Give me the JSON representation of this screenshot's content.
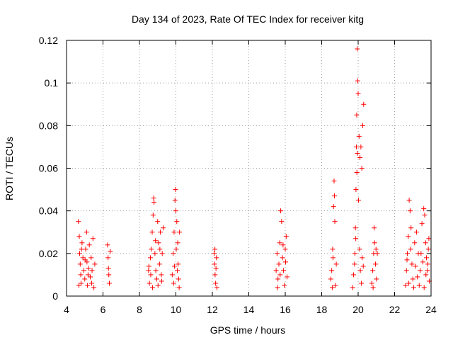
{
  "chart_data": {
    "type": "scatter",
    "title": "Day 134 of 2023, Rate Of TEC Index for receiver kitg",
    "xlabel": "GPS time / hours",
    "ylabel": "ROTI / TECUs",
    "xlim": [
      4,
      24
    ],
    "ylim": [
      0,
      0.12
    ],
    "xticks": [
      4,
      6,
      8,
      10,
      12,
      14,
      16,
      18,
      20,
      22,
      24
    ],
    "yticks": [
      0,
      0.02,
      0.04,
      0.06,
      0.08,
      0.1,
      0.12
    ],
    "xtick_labels": [
      "4",
      "6",
      "8",
      "10",
      "12",
      "14",
      "16",
      "18",
      "20",
      "22",
      "24"
    ],
    "ytick_labels": [
      "0",
      "0.02",
      "0.04",
      "0.06",
      "0.08",
      "0.1",
      "0.12"
    ],
    "grid": true,
    "marker": "+",
    "marker_color": "#ff0000",
    "series": [
      {
        "name": "ROTI",
        "points": [
          [
            4.65,
            0.035
          ],
          [
            4.7,
            0.028
          ],
          [
            4.72,
            0.02
          ],
          [
            4.75,
            0.015
          ],
          [
            4.78,
            0.01
          ],
          [
            4.8,
            0.006
          ],
          [
            4.85,
            0.025
          ],
          [
            4.9,
            0.018
          ],
          [
            4.95,
            0.012
          ],
          [
            5.0,
            0.008
          ],
          [
            5.05,
            0.022
          ],
          [
            5.1,
            0.03
          ],
          [
            5.12,
            0.016
          ],
          [
            5.15,
            0.005
          ],
          [
            5.2,
            0.013
          ],
          [
            5.25,
            0.024
          ],
          [
            5.3,
            0.009
          ],
          [
            5.35,
            0.018
          ],
          [
            5.4,
            0.012
          ],
          [
            5.45,
            0.027
          ],
          [
            5.5,
            0.004
          ],
          [
            5.55,
            0.015
          ],
          [
            4.68,
            0.005
          ],
          [
            4.82,
            0.022
          ],
          [
            5.02,
            0.017
          ],
          [
            5.18,
            0.01
          ],
          [
            5.38,
            0.006
          ],
          [
            6.25,
            0.024
          ],
          [
            6.28,
            0.018
          ],
          [
            6.3,
            0.013
          ],
          [
            6.32,
            0.01
          ],
          [
            6.35,
            0.006
          ],
          [
            6.4,
            0.021
          ],
          [
            8.5,
            0.012
          ],
          [
            8.55,
            0.006
          ],
          [
            8.6,
            0.018
          ],
          [
            8.65,
            0.022
          ],
          [
            8.7,
            0.03
          ],
          [
            8.75,
            0.038
          ],
          [
            8.78,
            0.046
          ],
          [
            8.8,
            0.044
          ],
          [
            8.85,
            0.02
          ],
          [
            8.9,
            0.012
          ],
          [
            8.95,
            0.008
          ],
          [
            9.0,
            0.035
          ],
          [
            9.05,
            0.025
          ],
          [
            9.1,
            0.015
          ],
          [
            9.15,
            0.03
          ],
          [
            9.2,
            0.01
          ],
          [
            9.25,
            0.02
          ],
          [
            9.3,
            0.032
          ],
          [
            8.52,
            0.014
          ],
          [
            8.62,
            0.01
          ],
          [
            8.72,
            0.004
          ],
          [
            8.88,
            0.026
          ],
          [
            9.02,
            0.005
          ],
          [
            9.12,
            0.022
          ],
          [
            9.22,
            0.007
          ],
          [
            9.8,
            0.01
          ],
          [
            9.85,
            0.02
          ],
          [
            9.9,
            0.03
          ],
          [
            9.95,
            0.045
          ],
          [
            9.98,
            0.05
          ],
          [
            10.0,
            0.04
          ],
          [
            10.05,
            0.035
          ],
          [
            10.1,
            0.025
          ],
          [
            10.12,
            0.015
          ],
          [
            10.15,
            0.008
          ],
          [
            10.2,
            0.03
          ],
          [
            9.88,
            0.006
          ],
          [
            9.92,
            0.014
          ],
          [
            10.02,
            0.022
          ],
          [
            10.08,
            0.012
          ],
          [
            10.18,
            0.004
          ],
          [
            12.1,
            0.02
          ],
          [
            12.12,
            0.015
          ],
          [
            12.15,
            0.01
          ],
          [
            12.18,
            0.006
          ],
          [
            12.2,
            0.013
          ],
          [
            12.22,
            0.018
          ],
          [
            12.25,
            0.004
          ],
          [
            12.14,
            0.022
          ],
          [
            15.5,
            0.012
          ],
          [
            15.55,
            0.02
          ],
          [
            15.6,
            0.008
          ],
          [
            15.65,
            0.015
          ],
          [
            15.7,
            0.025
          ],
          [
            15.75,
            0.04
          ],
          [
            15.8,
            0.035
          ],
          [
            15.85,
            0.018
          ],
          [
            15.9,
            0.012
          ],
          [
            15.95,
            0.005
          ],
          [
            16.0,
            0.022
          ],
          [
            16.05,
            0.028
          ],
          [
            16.1,
            0.009
          ],
          [
            15.58,
            0.004
          ],
          [
            15.72,
            0.01
          ],
          [
            15.88,
            0.024
          ],
          [
            16.02,
            0.016
          ],
          [
            18.5,
            0.008
          ],
          [
            18.55,
            0.012
          ],
          [
            18.6,
            0.022
          ],
          [
            18.65,
            0.042
          ],
          [
            18.68,
            0.054
          ],
          [
            18.7,
            0.047
          ],
          [
            18.72,
            0.035
          ],
          [
            18.75,
            0.005
          ],
          [
            18.8,
            0.015
          ],
          [
            18.58,
            0.004
          ],
          [
            18.62,
            0.018
          ],
          [
            19.7,
            0.004
          ],
          [
            19.75,
            0.01
          ],
          [
            19.8,
            0.015
          ],
          [
            19.85,
            0.032
          ],
          [
            19.88,
            0.05
          ],
          [
            19.9,
            0.07
          ],
          [
            19.92,
            0.085
          ],
          [
            19.95,
            0.116
          ],
          [
            19.98,
            0.101
          ],
          [
            20.0,
            0.095
          ],
          [
            20.05,
            0.075
          ],
          [
            20.1,
            0.065
          ],
          [
            20.15,
            0.07
          ],
          [
            20.2,
            0.06
          ],
          [
            20.25,
            0.08
          ],
          [
            20.3,
            0.09
          ],
          [
            19.93,
            0.058
          ],
          [
            19.96,
            0.067
          ],
          [
            20.02,
            0.045
          ],
          [
            20.08,
            0.022
          ],
          [
            20.12,
            0.012
          ],
          [
            20.18,
            0.006
          ],
          [
            20.22,
            0.018
          ],
          [
            20.28,
            0.014
          ],
          [
            19.82,
            0.02
          ],
          [
            19.87,
            0.027
          ],
          [
            20.75,
            0.006
          ],
          [
            20.8,
            0.012
          ],
          [
            20.85,
            0.02
          ],
          [
            20.88,
            0.032
          ],
          [
            20.9,
            0.025
          ],
          [
            20.95,
            0.015
          ],
          [
            21.0,
            0.008
          ],
          [
            21.05,
            0.02
          ],
          [
            20.82,
            0.004
          ],
          [
            20.98,
            0.022
          ],
          [
            22.6,
            0.005
          ],
          [
            22.65,
            0.012
          ],
          [
            22.7,
            0.02
          ],
          [
            22.75,
            0.028
          ],
          [
            22.8,
            0.045
          ],
          [
            22.85,
            0.04
          ],
          [
            22.9,
            0.032
          ],
          [
            22.95,
            0.015
          ],
          [
            23.0,
            0.008
          ],
          [
            23.1,
            0.025
          ],
          [
            23.2,
            0.03
          ],
          [
            23.3,
            0.02
          ],
          [
            23.4,
            0.012
          ],
          [
            23.5,
            0.034
          ],
          [
            23.6,
            0.041
          ],
          [
            23.65,
            0.038
          ],
          [
            23.7,
            0.025
          ],
          [
            23.75,
            0.018
          ],
          [
            23.8,
            0.012
          ],
          [
            23.85,
            0.022
          ],
          [
            23.9,
            0.007
          ],
          [
            22.68,
            0.017
          ],
          [
            22.78,
            0.006
          ],
          [
            22.88,
            0.022
          ],
          [
            23.05,
            0.004
          ],
          [
            23.15,
            0.014
          ],
          [
            23.25,
            0.009
          ],
          [
            23.35,
            0.005
          ],
          [
            23.45,
            0.02
          ],
          [
            23.55,
            0.016
          ],
          [
            23.62,
            0.004
          ],
          [
            23.72,
            0.01
          ],
          [
            23.82,
            0.015
          ],
          [
            23.88,
            0.027
          ]
        ]
      }
    ]
  }
}
